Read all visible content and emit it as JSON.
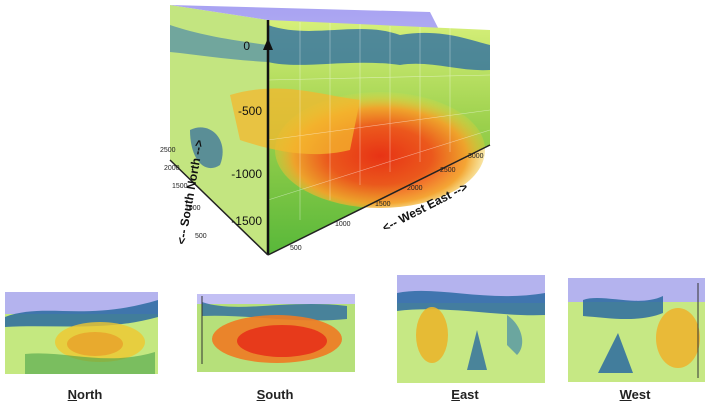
{
  "main_view": {
    "depth_ticks": [
      "0",
      "-500",
      "-1000",
      "-1500"
    ],
    "ns_ticks": [
      "2500",
      "2000",
      "1500",
      "1000",
      "500"
    ],
    "ew_ticks": [
      "500",
      "1000",
      "1500",
      "2000",
      "2500",
      "3000"
    ],
    "ns_axis_label": "<-- South   North -->",
    "ew_axis_label": "<-- West   East -->"
  },
  "views": [
    {
      "first": "N",
      "rest": "orth"
    },
    {
      "first": "S",
      "rest": "outh"
    },
    {
      "first": "E",
      "rest": "ast"
    },
    {
      "first": "W",
      "rest": "est"
    }
  ]
}
